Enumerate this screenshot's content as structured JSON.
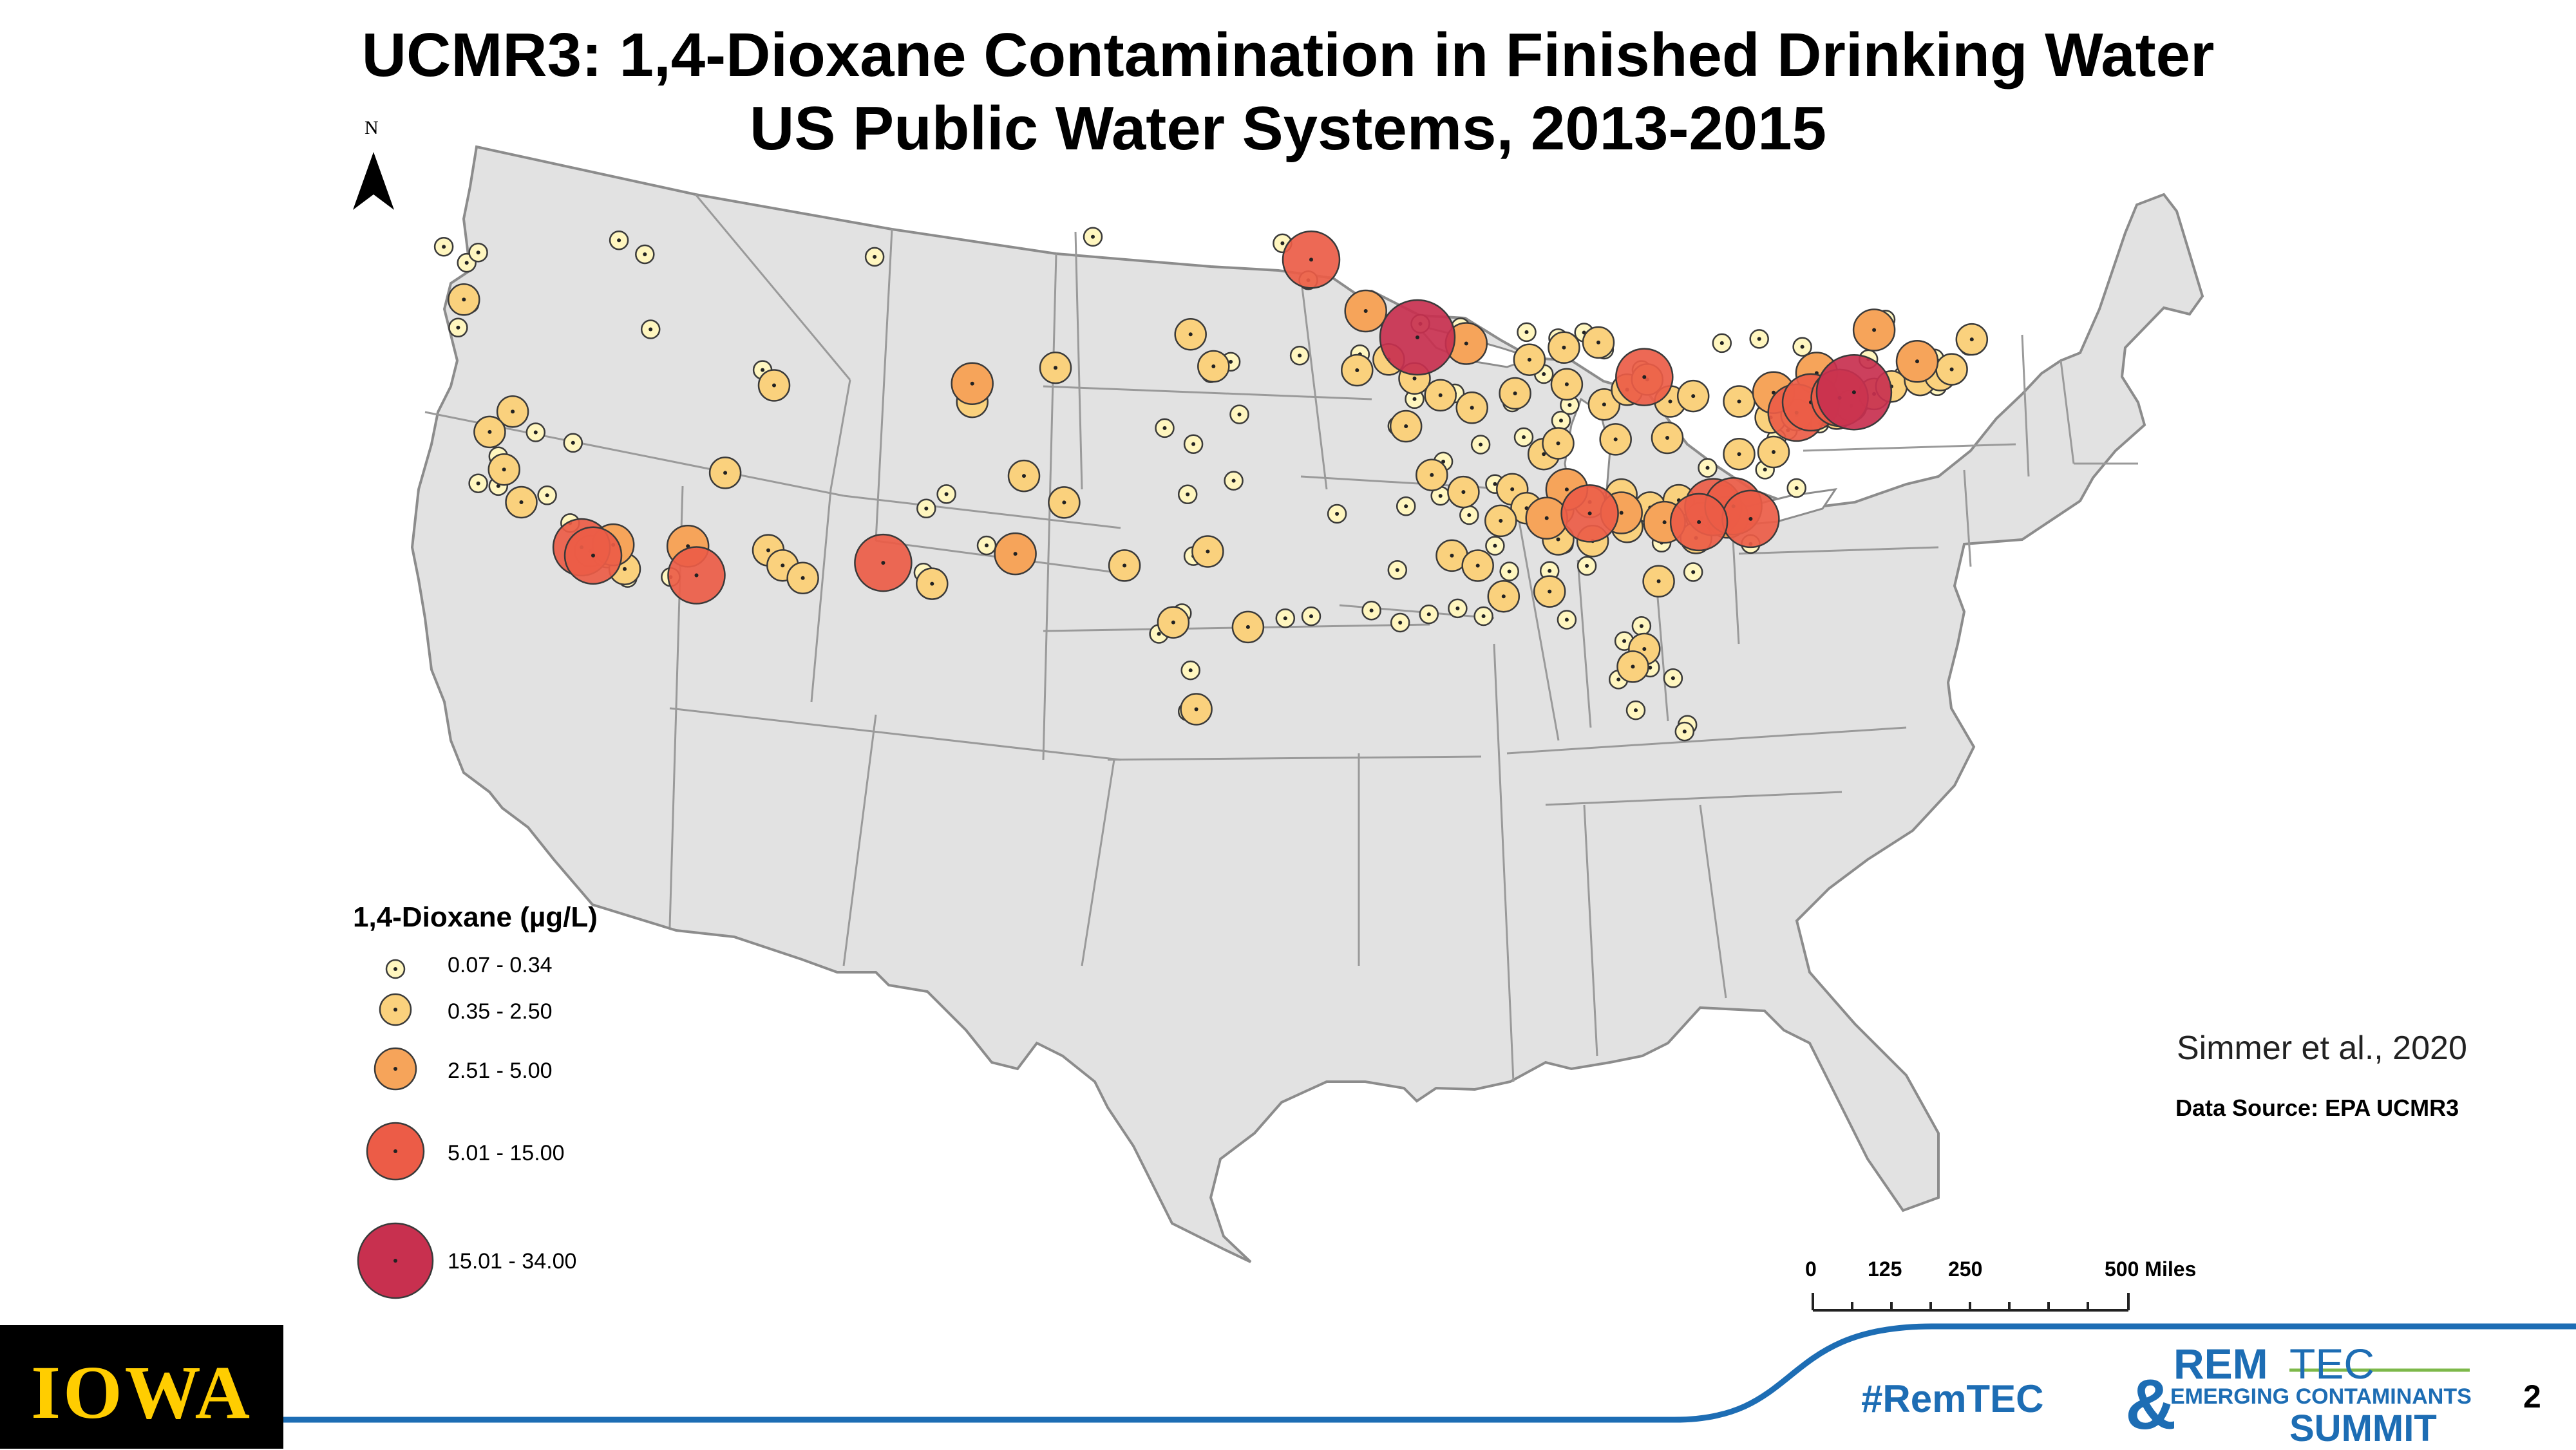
{
  "title_line1": "UCMR3: 1,4-Dioxane Contamination in Finished Drinking Water",
  "title_line2": "US Public Water Systems, 2013-2015",
  "north_label": "N",
  "legend": {
    "title": "1,4-Dioxane (µg/L)",
    "classes": [
      {
        "label": "0.07 - 0.34",
        "color": "#FFF6BF"
      },
      {
        "label": "0.35 - 2.50",
        "color": "#FAD17D"
      },
      {
        "label": "2.51 - 5.00",
        "color": "#F6A45A"
      },
      {
        "label": "5.01 - 15.00",
        "color": "#EC5C47"
      },
      {
        "label": "15.01 - 34.00",
        "color": "#C8304F"
      }
    ]
  },
  "citation": "Simmer et al., 2020",
  "data_source": "Data Source: EPA UCMR3",
  "scale_bar": {
    "labels": [
      "0",
      "125",
      "250",
      "500 Miles"
    ]
  },
  "footer": {
    "logo_text": "IOWA",
    "hashtag": "#RemTEC",
    "summit_logo": {
      "rem": "REM",
      "tec": "TEC",
      "amp": "&",
      "middle": "EMERGING CONTAMINANTS",
      "summit": "SUMMIT"
    },
    "page_number": "2"
  },
  "colors": {
    "land": "#E2E2E2",
    "border": "#8C8C8C",
    "accent_blue": "#1D6DB4",
    "iowa_gold": "#FFCD00"
  },
  "map_data": {
    "class_1_sites": [
      {
        "lon": -123.4,
        "lat": 48.0
      },
      {
        "lon": -122.6,
        "lat": 47.2
      },
      {
        "lon": -122.2,
        "lat": 47.6
      },
      {
        "lon": -122.5,
        "lat": 45.4
      },
      {
        "lon": -122.9,
        "lat": 44.4
      },
      {
        "lon": -117.3,
        "lat": 47.6
      },
      {
        "lon": -116.4,
        "lat": 46.9
      },
      {
        "lon": -108.4,
        "lat": 46.2
      },
      {
        "lon": -112.3,
        "lat": 41.5
      },
      {
        "lon": -116.2,
        "lat": 43.6
      },
      {
        "lon": -120.2,
        "lat": 39.5
      },
      {
        "lon": -118.9,
        "lat": 38.9
      },
      {
        "lon": -121.5,
        "lat": 38.6
      },
      {
        "lon": -122.2,
        "lat": 37.5
      },
      {
        "lon": -121.5,
        "lat": 37.3
      },
      {
        "lon": -119.8,
        "lat": 36.7
      },
      {
        "lon": -119.0,
        "lat": 35.4
      },
      {
        "lon": -118.1,
        "lat": 34.0
      },
      {
        "lon": -117.4,
        "lat": 33.9
      },
      {
        "lon": -117.0,
        "lat": 32.8
      },
      {
        "lon": -115.5,
        "lat": 32.7
      },
      {
        "lon": -111.9,
        "lat": 33.4
      },
      {
        "lon": -110.9,
        "lat": 32.2
      },
      {
        "lon": -106.6,
        "lat": 35.1
      },
      {
        "lon": -105.9,
        "lat": 35.7
      },
      {
        "lon": -106.7,
        "lat": 32.3
      },
      {
        "lon": -104.5,
        "lat": 33.4
      },
      {
        "lon": -101.9,
        "lat": 35.2
      },
      {
        "lon": -97.5,
        "lat": 35.5
      },
      {
        "lon": -95.9,
        "lat": 36.1
      },
      {
        "lon": -97.3,
        "lat": 37.7
      },
      {
        "lon": -98.3,
        "lat": 38.4
      },
      {
        "lon": -95.7,
        "lat": 39.0
      },
      {
        "lon": -96.7,
        "lat": 40.8
      },
      {
        "lon": -96.0,
        "lat": 41.3
      },
      {
        "lon": -100.8,
        "lat": 46.8
      },
      {
        "lon": -94.2,
        "lat": 46.5
      },
      {
        "lon": -93.3,
        "lat": 44.9
      },
      {
        "lon": -93.6,
        "lat": 41.6
      },
      {
        "lon": -91.5,
        "lat": 41.7
      },
      {
        "lon": -90.6,
        "lat": 41.5
      },
      {
        "lon": -92.3,
        "lat": 34.7
      },
      {
        "lon": -97.3,
        "lat": 32.8
      },
      {
        "lon": -96.8,
        "lat": 32.8
      },
      {
        "lon": -97.7,
        "lat": 30.3
      },
      {
        "lon": -98.5,
        "lat": 29.4
      },
      {
        "lon": -95.4,
        "lat": 29.8
      },
      {
        "lon": -94.1,
        "lat": 30.1
      },
      {
        "lon": -97.4,
        "lat": 27.8
      },
      {
        "lon": -97.5,
        "lat": 26.0
      },
      {
        "lon": -93.2,
        "lat": 30.2
      },
      {
        "lon": -91.1,
        "lat": 30.5
      },
      {
        "lon": -90.1,
        "lat": 30.0
      },
      {
        "lon": -89.1,
        "lat": 30.4
      },
      {
        "lon": -88.1,
        "lat": 30.7
      },
      {
        "lon": -87.2,
        "lat": 30.4
      },
      {
        "lon": -90.2,
        "lat": 32.3
      },
      {
        "lon": -86.8,
        "lat": 33.5
      },
      {
        "lon": -86.3,
        "lat": 32.4
      },
      {
        "lon": -84.4,
        "lat": 33.7
      },
      {
        "lon": -84.3,
        "lat": 30.4
      },
      {
        "lon": -82.3,
        "lat": 29.6
      },
      {
        "lon": -81.4,
        "lat": 28.5
      },
      {
        "lon": -82.5,
        "lat": 27.9
      },
      {
        "lon": -81.9,
        "lat": 26.6
      },
      {
        "lon": -80.1,
        "lat": 26.1
      },
      {
        "lon": -80.2,
        "lat": 25.8
      },
      {
        "lon": -80.6,
        "lat": 28.1
      },
      {
        "lon": -81.7,
        "lat": 30.3
      },
      {
        "lon": -81.1,
        "lat": 32.1
      },
      {
        "lon": -79.9,
        "lat": 32.8
      },
      {
        "lon": -81.0,
        "lat": 34.0
      },
      {
        "lon": -80.8,
        "lat": 35.2
      },
      {
        "lon": -78.6,
        "lat": 35.8
      },
      {
        "lon": -77.9,
        "lat": 34.2
      },
      {
        "lon": -76.3,
        "lat": 36.8
      },
      {
        "lon": -77.4,
        "lat": 37.5
      },
      {
        "lon": -79.4,
        "lat": 37.4
      },
      {
        "lon": -76.6,
        "lat": 39.3
      },
      {
        "lon": -77.0,
        "lat": 38.9
      },
      {
        "lon": -75.5,
        "lat": 39.7
      },
      {
        "lon": -75.2,
        "lat": 40.0
      },
      {
        "lon": -77.0,
        "lat": 40.3
      },
      {
        "lon": -80.0,
        "lat": 40.4
      },
      {
        "lon": -81.7,
        "lat": 41.5
      },
      {
        "lon": -83.0,
        "lat": 40.0
      },
      {
        "lon": -84.5,
        "lat": 39.1
      },
      {
        "lon": -85.8,
        "lat": 38.3
      },
      {
        "lon": -86.8,
        "lat": 36.2
      },
      {
        "lon": -85.3,
        "lat": 35.0
      },
      {
        "lon": -83.9,
        "lat": 35.9
      },
      {
        "lon": -86.2,
        "lat": 39.8
      },
      {
        "lon": -87.6,
        "lat": 41.9
      },
      {
        "lon": -88.0,
        "lat": 43.0
      },
      {
        "lon": -89.4,
        "lat": 43.1
      },
      {
        "lon": -85.7,
        "lat": 42.9
      },
      {
        "lon": -83.0,
        "lat": 42.3
      },
      {
        "lon": -83.7,
        "lat": 43.0
      },
      {
        "lon": -84.6,
        "lat": 42.7
      },
      {
        "lon": -90.2,
        "lat": 38.6
      },
      {
        "lon": -89.6,
        "lat": 39.8
      },
      {
        "lon": -88.2,
        "lat": 40.1
      },
      {
        "lon": -78.9,
        "lat": 42.9
      },
      {
        "lon": -77.6,
        "lat": 43.2
      },
      {
        "lon": -76.1,
        "lat": 43.0
      },
      {
        "lon": -73.8,
        "lat": 42.7
      },
      {
        "lon": -72.6,
        "lat": 42.1
      },
      {
        "lon": -71.4,
        "lat": 41.8
      },
      {
        "lon": -71.1,
        "lat": 42.4
      },
      {
        "lon": -70.3,
        "lat": 43.7
      },
      {
        "lon": -72.7,
        "lat": 41.8
      },
      {
        "lon": -73.2,
        "lat": 44.5
      },
      {
        "lon": -71.5,
        "lat": 43.0
      },
      {
        "lon": -74.2,
        "lat": 40.7
      },
      {
        "lon": -73.9,
        "lat": 40.9
      },
      {
        "lon": -75.6,
        "lat": 41.4
      },
      {
        "lon": -84.2,
        "lat": 39.8
      },
      {
        "lon": -85.1,
        "lat": 41.1
      },
      {
        "lon": -87.3,
        "lat": 37.9
      },
      {
        "lon": -88.6,
        "lat": 37.1
      },
      {
        "lon": -89.9,
        "lat": 35.1
      },
      {
        "lon": -88.7,
        "lat": 35.6
      },
      {
        "lon": -87.7,
        "lat": 34.8
      },
      {
        "lon": -83.6,
        "lat": 32.8
      },
      {
        "lon": -84.9,
        "lat": 32.5
      }
    ],
    "class_2_sites": [
      {
        "lon": -122.7,
        "lat": 45.6
      },
      {
        "lon": -121.0,
        "lat": 40.5
      },
      {
        "lon": -121.8,
        "lat": 39.7
      },
      {
        "lon": -121.3,
        "lat": 38.0
      },
      {
        "lon": -120.7,
        "lat": 36.5
      },
      {
        "lon": -118.3,
        "lat": 34.1
      },
      {
        "lon": -117.7,
        "lat": 34.0
      },
      {
        "lon": -117.1,
        "lat": 33.2
      },
      {
        "lon": -111.9,
        "lat": 40.8
      },
      {
        "lon": -113.6,
        "lat": 37.1
      },
      {
        "lon": -112.1,
        "lat": 33.6
      },
      {
        "lon": -111.6,
        "lat": 32.9
      },
      {
        "lon": -110.9,
        "lat": 32.3
      },
      {
        "lon": -106.4,
        "lat": 31.8
      },
      {
        "lon": -105.0,
        "lat": 39.7
      },
      {
        "lon": -103.2,
        "lat": 36.4
      },
      {
        "lon": -101.8,
        "lat": 35.2
      },
      {
        "lon": -99.7,
        "lat": 32.4
      },
      {
        "lon": -98.0,
        "lat": 29.9
      },
      {
        "lon": -96.8,
        "lat": 33.0
      },
      {
        "lon": -95.4,
        "lat": 29.7
      },
      {
        "lon": -97.2,
        "lat": 26.1
      },
      {
        "lon": -102.1,
        "lat": 41.1
      },
      {
        "lon": -97.4,
        "lat": 42.5
      },
      {
        "lon": -96.6,
        "lat": 41.1
      },
      {
        "lon": -90.5,
        "lat": 41.5
      },
      {
        "lon": -91.6,
        "lat": 41.0
      },
      {
        "lon": -89.6,
        "lat": 40.7
      },
      {
        "lon": -88.7,
        "lat": 40.0
      },
      {
        "lon": -89.9,
        "lat": 38.6
      },
      {
        "lon": -87.6,
        "lat": 39.5
      },
      {
        "lon": -86.1,
        "lat": 40.2
      },
      {
        "lon": -85.6,
        "lat": 41.7
      },
      {
        "lon": -84.4,
        "lat": 42.3
      },
      {
        "lon": -83.2,
        "lat": 42.6
      },
      {
        "lon": -84.3,
        "lat": 40.7
      },
      {
        "lon": -83.0,
        "lat": 39.9
      },
      {
        "lon": -82.2,
        "lat": 40.6
      },
      {
        "lon": -81.5,
        "lat": 41.1
      },
      {
        "lon": -80.7,
        "lat": 40.2
      },
      {
        "lon": -79.9,
        "lat": 40.5
      },
      {
        "lon": -78.3,
        "lat": 40.4
      },
      {
        "lon": -77.2,
        "lat": 39.8
      },
      {
        "lon": -76.3,
        "lat": 40.0
      },
      {
        "lon": -74.9,
        "lat": 40.2
      },
      {
        "lon": -74.4,
        "lat": 40.6
      },
      {
        "lon": -73.6,
        "lat": 41.2
      },
      {
        "lon": -73.0,
        "lat": 41.6
      },
      {
        "lon": -72.0,
        "lat": 42.0
      },
      {
        "lon": -71.3,
        "lat": 42.3
      },
      {
        "lon": -70.9,
        "lat": 42.6
      },
      {
        "lon": -70.2,
        "lat": 44.0
      },
      {
        "lon": -86.2,
        "lat": 36.0
      },
      {
        "lon": -85.7,
        "lat": 35.2
      },
      {
        "lon": -84.6,
        "lat": 35.2
      },
      {
        "lon": -83.5,
        "lat": 35.6
      },
      {
        "lon": -82.4,
        "lat": 36.0
      },
      {
        "lon": -81.4,
        "lat": 35.5
      },
      {
        "lon": -80.4,
        "lat": 35.9
      },
      {
        "lon": -79.6,
        "lat": 35.2
      },
      {
        "lon": -78.9,
        "lat": 36.0
      },
      {
        "lon": -79.8,
        "lat": 34.3
      },
      {
        "lon": -82.2,
        "lat": 34.6
      },
      {
        "lon": -83.4,
        "lat": 33.9
      },
      {
        "lon": -84.6,
        "lat": 33.9
      },
      {
        "lon": -86.6,
        "lat": 34.6
      },
      {
        "lon": -87.9,
        "lat": 35.8
      },
      {
        "lon": -89.0,
        "lat": 36.5
      },
      {
        "lon": -88.3,
        "lat": 33.0
      },
      {
        "lon": -87.4,
        "lat": 32.6
      },
      {
        "lon": -86.5,
        "lat": 31.3
      },
      {
        "lon": -84.9,
        "lat": 31.6
      },
      {
        "lon": -81.1,
        "lat": 32.3
      },
      {
        "lon": -81.6,
        "lat": 29.3
      },
      {
        "lon": -82.0,
        "lat": 28.5
      },
      {
        "lon": -85.1,
        "lat": 37.6
      },
      {
        "lon": -84.6,
        "lat": 38.1
      },
      {
        "lon": -82.6,
        "lat": 38.4
      },
      {
        "lon": -80.8,
        "lat": 38.6
      },
      {
        "lon": -78.3,
        "lat": 38.1
      },
      {
        "lon": -77.1,
        "lat": 38.3
      }
    ],
    "class_3_sites": [
      {
        "lon": -117.5,
        "lat": 34.3
      },
      {
        "lon": -114.9,
        "lat": 34.0
      },
      {
        "lon": -105.0,
        "lat": 40.5
      },
      {
        "lon": -103.5,
        "lat": 33.0
      },
      {
        "lon": -91.3,
        "lat": 43.6
      },
      {
        "lon": -87.8,
        "lat": 42.3
      },
      {
        "lon": -84.3,
        "lat": 36.1
      },
      {
        "lon": -80.9,
        "lat": 34.9
      },
      {
        "lon": -78.7,
        "lat": 35.3
      },
      {
        "lon": -77.1,
        "lat": 40.9
      },
      {
        "lon": -73.6,
        "lat": 44.0
      },
      {
        "lon": -72.1,
        "lat": 42.8
      },
      {
        "lon": -75.6,
        "lat": 41.9
      },
      {
        "lon": -82.4,
        "lat": 35.2
      },
      {
        "lon": -85.0,
        "lat": 34.8
      }
    ],
    "class_4_sites": [
      {
        "lon": -118.6,
        "lat": 34.3
      },
      {
        "lon": -118.2,
        "lat": 33.9
      },
      {
        "lon": -114.6,
        "lat": 32.7
      },
      {
        "lon": -108.1,
        "lat": 32.8
      },
      {
        "lon": -93.2,
        "lat": 45.8
      },
      {
        "lon": -81.6,
        "lat": 41.2
      },
      {
        "lon": -76.3,
        "lat": 40.1
      },
      {
        "lon": -75.8,
        "lat": 40.6
      },
      {
        "lon": -74.8,
        "lat": 40.9
      },
      {
        "lon": -79.2,
        "lat": 35.7
      },
      {
        "lon": -78.5,
        "lat": 35.8
      },
      {
        "lon": -77.9,
        "lat": 35.3
      },
      {
        "lon": -79.7,
        "lat": 35.0
      },
      {
        "lon": -83.5,
        "lat": 35.1
      }
    ],
    "class_5_sites": [
      {
        "lon": -89.5,
        "lat": 42.5
      },
      {
        "lon": -74.3,
        "lat": 41.2
      }
    ]
  }
}
